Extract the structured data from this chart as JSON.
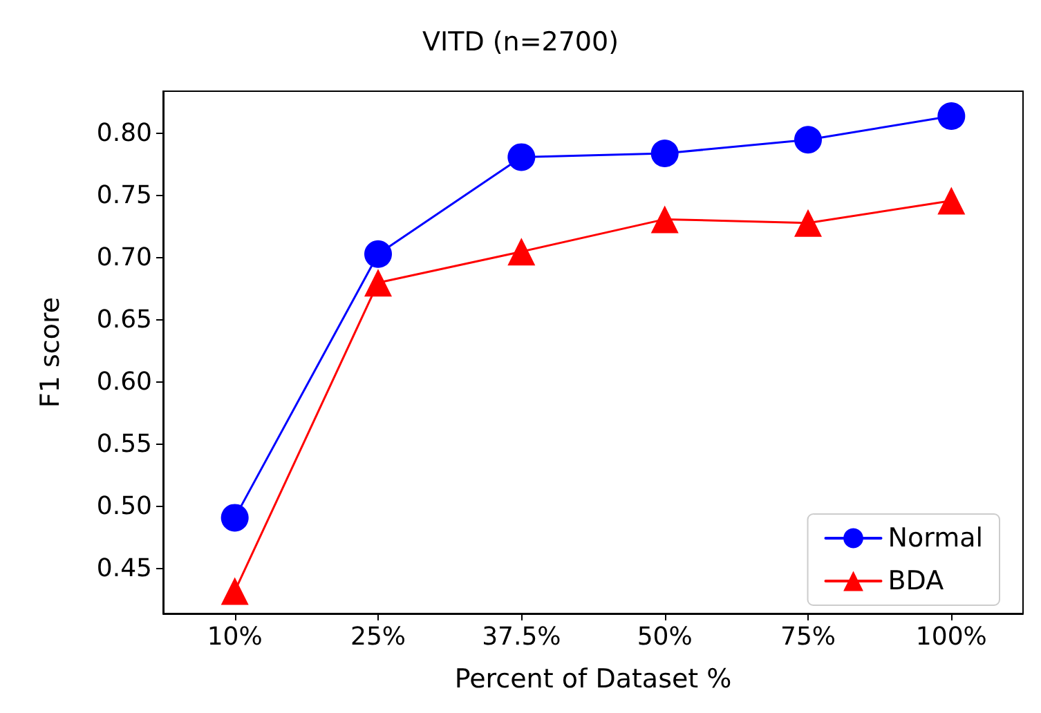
{
  "chart_data": {
    "type": "line",
    "title": "VITD (n=2700)",
    "xlabel": "Percent of Dataset %",
    "ylabel": "F1 score",
    "categories": [
      "10%",
      "25%",
      "37.5%",
      "50%",
      "75%",
      "100%"
    ],
    "series": [
      {
        "name": "Normal",
        "color": "#0000ff",
        "marker": "circle",
        "values": [
          0.491,
          0.703,
          0.781,
          0.784,
          0.795,
          0.814
        ]
      },
      {
        "name": "BDA",
        "color": "#ff0000",
        "marker": "triangle",
        "values": [
          0.432,
          0.68,
          0.705,
          0.731,
          0.728,
          0.746
        ]
      }
    ],
    "ylim": [
      0.414,
      0.834
    ],
    "yticks": [
      0.45,
      {
        "value": 0.5,
        "label": "0.50"
      },
      0.55,
      {
        "value": 0.6,
        "label": "0.60"
      },
      0.65,
      {
        "value": 0.7,
        "label": "0.70"
      },
      0.75,
      {
        "value": 0.8,
        "label": "0.80"
      }
    ],
    "legend": "bottom right",
    "grid": false,
    "line_style": "solid"
  }
}
